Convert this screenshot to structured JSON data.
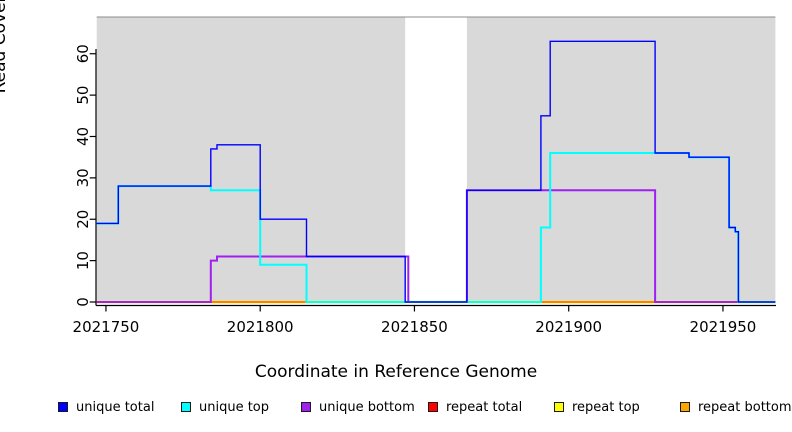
{
  "chart_data": {
    "type": "line",
    "step": "after",
    "title": "",
    "xlabel": "Coordinate in Reference Genome",
    "ylabel": "Read Coverage Depth",
    "xlim": [
      2021747,
      2021967
    ],
    "ylim": [
      0,
      69
    ],
    "x_ticks": [
      2021750,
      2021800,
      2021850,
      2021900,
      2021950
    ],
    "y_ticks": [
      0,
      10,
      20,
      30,
      40,
      50,
      60
    ],
    "grid": false,
    "plot_background": "#d9d9d9",
    "top_border_color": "#8c8c8c",
    "axis_color": "#000000",
    "gap_region": {
      "x_start": 2021847,
      "x_end": 2021867,
      "color": "#ffffff"
    },
    "legend_position": "bottom",
    "series": [
      {
        "name": "unique total",
        "color": "#0000ff",
        "points": [
          [
            2021747,
            19
          ],
          [
            2021754,
            28
          ],
          [
            2021784,
            37
          ],
          [
            2021786,
            38
          ],
          [
            2021800,
            20
          ],
          [
            2021815,
            11
          ],
          [
            2021847,
            0
          ],
          [
            2021867,
            27
          ],
          [
            2021891,
            45
          ],
          [
            2021894,
            63
          ],
          [
            2021928,
            36
          ],
          [
            2021939,
            35
          ],
          [
            2021952,
            18
          ],
          [
            2021954,
            17
          ],
          [
            2021955,
            0
          ]
        ]
      },
      {
        "name": "unique top",
        "color": "#00ffff",
        "points": [
          [
            2021747,
            19
          ],
          [
            2021754,
            28
          ],
          [
            2021784,
            27
          ],
          [
            2021800,
            9
          ],
          [
            2021815,
            0
          ],
          [
            2021891,
            18
          ],
          [
            2021894,
            36
          ],
          [
            2021939,
            35
          ],
          [
            2021952,
            18
          ],
          [
            2021954,
            17
          ],
          [
            2021955,
            0
          ]
        ]
      },
      {
        "name": "unique bottom",
        "color": "#a020f0",
        "points": [
          [
            2021747,
            0
          ],
          [
            2021784,
            10
          ],
          [
            2021786,
            11
          ],
          [
            2021848,
            0
          ],
          [
            2021867,
            27
          ],
          [
            2021928,
            0
          ]
        ]
      },
      {
        "name": "repeat total",
        "color": "#ff0000",
        "points": [
          [
            2021747,
            0
          ]
        ]
      },
      {
        "name": "repeat top",
        "color": "#ffff00",
        "points": [
          [
            2021747,
            0
          ]
        ]
      },
      {
        "name": "repeat bottom",
        "color": "#ffa500",
        "points": [
          [
            2021747,
            0
          ]
        ]
      }
    ]
  }
}
